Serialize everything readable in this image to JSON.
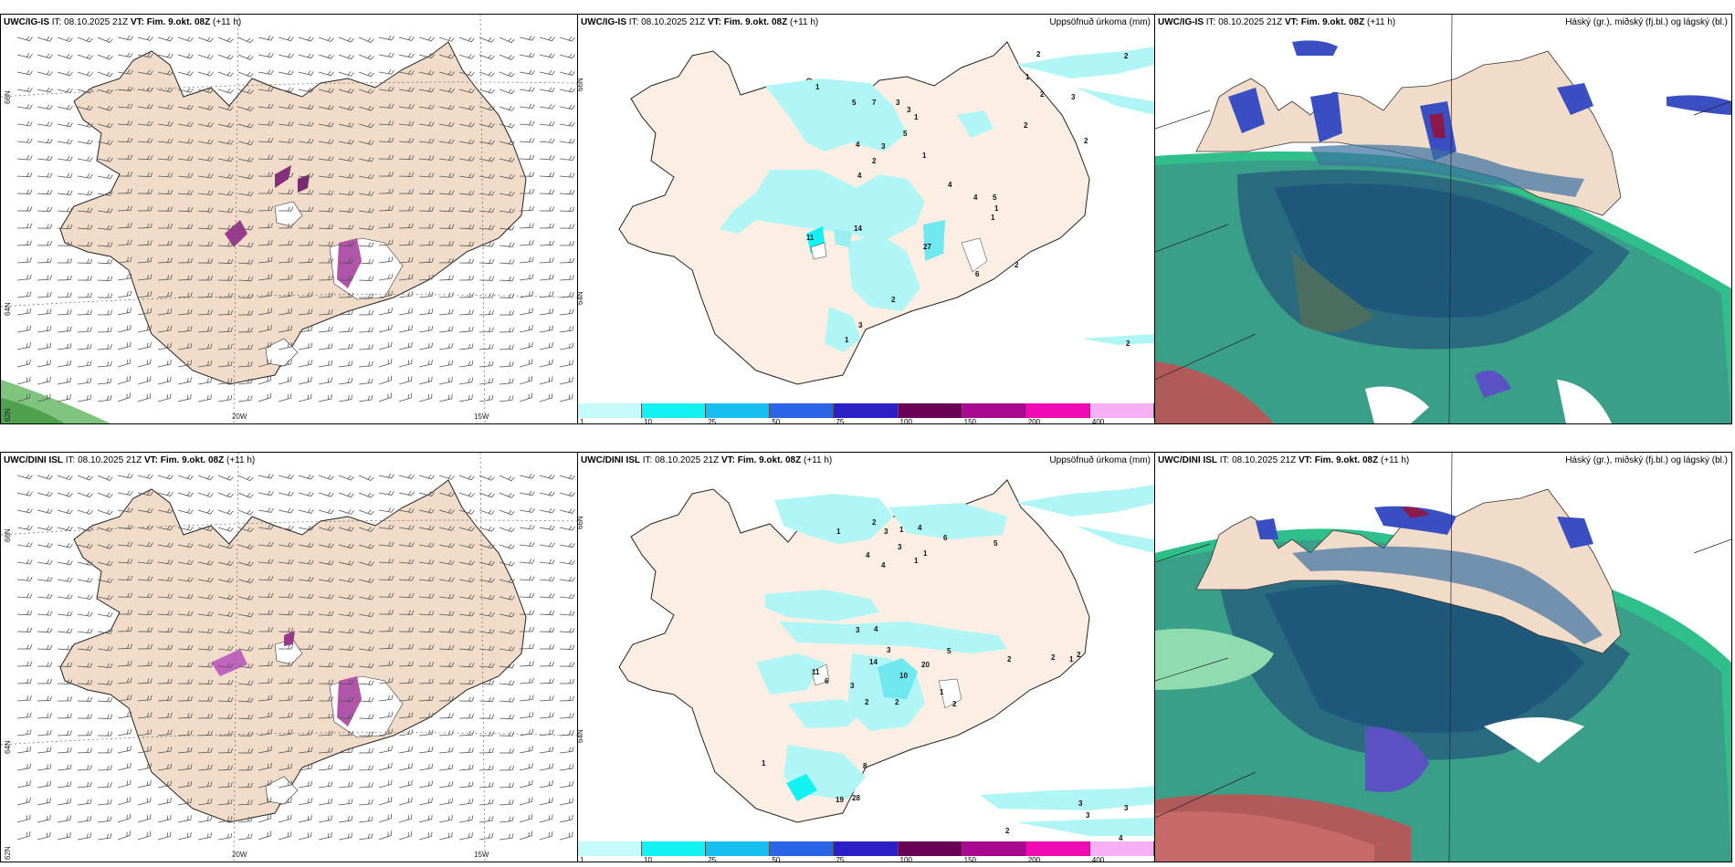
{
  "rows": [
    {
      "model": "UWC/IG-IS",
      "it_label": "IT:",
      "it_value": "08.10.2025 21Z",
      "vt_label": "VT:",
      "vt_value": "Fim. 9.okt. 08Z",
      "lead": "(+11 h)",
      "precip_numbers": [
        "1",
        "5",
        "7",
        "3",
        "3",
        "1",
        "5",
        "4",
        "3",
        "2",
        "1",
        "4",
        "4",
        "4",
        "5",
        "1",
        "1",
        "11",
        "14",
        "27",
        "6",
        "2",
        "2",
        "1",
        "3",
        "2",
        "2",
        "3",
        "1",
        "2",
        "2",
        "2",
        "2"
      ]
    },
    {
      "model": "UWC/DINI ISL",
      "it_label": "IT:",
      "it_value": "08.10.2025 21Z",
      "vt_label": "VT:",
      "vt_value": "Fim. 9.okt. 08Z",
      "lead": "(+11 h)",
      "precip_numbers": [
        "1",
        "2",
        "3",
        "1",
        "4",
        "6",
        "5",
        "3",
        "1",
        "4",
        "4",
        "1",
        "3",
        "4",
        "3",
        "5",
        "2",
        "2",
        "2",
        "1",
        "14",
        "11",
        "6",
        "3",
        "20",
        "10",
        "2",
        "2",
        "1",
        "8",
        "19",
        "28",
        "3",
        "3",
        "3",
        "2",
        "4",
        "1",
        "2"
      ]
    }
  ],
  "precip_title": "Uppsöfnuð úrkoma (mm)",
  "cloud_title": "Háský (gr.), miðský (fj.bl.) og lágský (bl.)",
  "wind_panel": {
    "lat_labels": [
      "66N",
      "64N",
      "62N"
    ],
    "lon_labels": [
      "20W",
      "15W"
    ]
  },
  "colorbar": {
    "ticks": [
      "1",
      "10",
      "25",
      "50",
      "75",
      "100",
      "150",
      "200",
      "400"
    ],
    "colors": [
      "#c6fbfb",
      "#13f2f2",
      "#15c0f0",
      "#2a65e8",
      "#2b20c6",
      "#6a0055",
      "#a8078f",
      "#f10bb4",
      "#f6b0f3"
    ]
  },
  "colors": {
    "land": "#f0dcc8",
    "land_light": "#fbeee2",
    "cyan_precip": "#b0f6f6",
    "teal_cloud": "#3a8f82",
    "green_cloud": "#2fd18f",
    "blue_cloud": "#3949c4"
  }
}
